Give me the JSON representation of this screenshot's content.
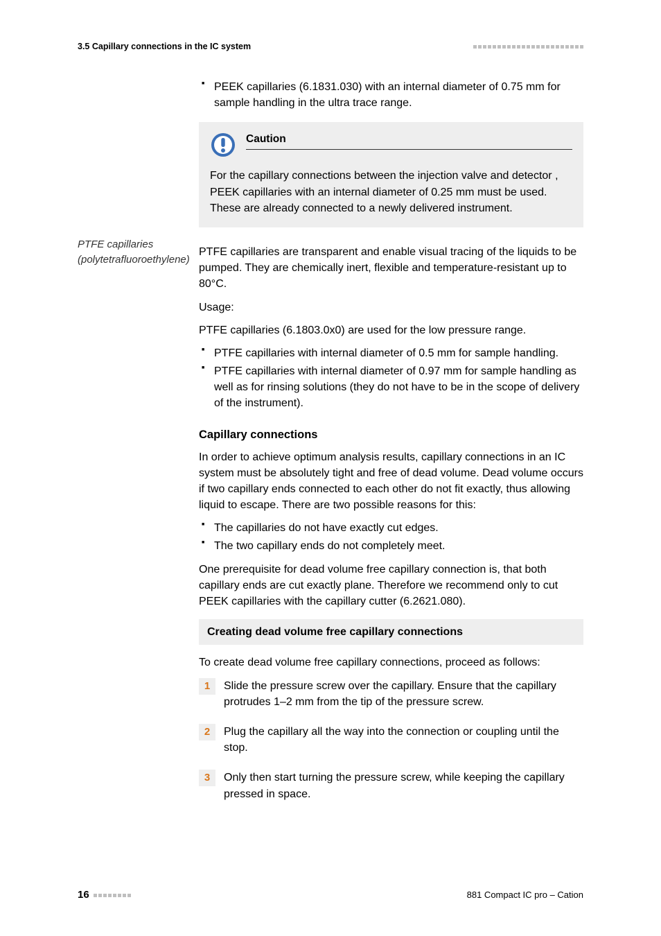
{
  "header": {
    "section": "3.5 Capillary connections in the IC system",
    "dots": 23
  },
  "top_bullet": "PEEK capillaries (6.1831.030) with an internal diameter of 0.75 mm for sample handling in the ultra trace range.",
  "caution": {
    "title": "Caution",
    "body": "For the capillary connections between the injection valve and detector , PEEK capillaries with an internal diameter of 0.25 mm must be used. These are already connected to a newly delivered instrument.",
    "icon": {
      "ring": "#3a6fb7",
      "fill": "#ffffff",
      "mark": "#3a6fb7"
    }
  },
  "ptfe": {
    "side_label": "PTFE capillaries (polytetrafluoroethylene)",
    "p1": "PTFE capillaries are transparent and enable visual tracing of the liquids to be pumped. They are chemically inert, flexible and temperature-resistant up to 80°C.",
    "usage_label": "Usage:",
    "usage_desc": "PTFE capillaries (6.1803.0x0) are used for the low pressure range.",
    "bullets": [
      "PTFE capillaries with internal diameter of 0.5 mm for sample handling.",
      "PTFE capillaries with internal diameter of 0.97 mm for sample handling as well as for rinsing solutions (they do not have to be in the scope of delivery of the instrument)."
    ]
  },
  "cap_conn": {
    "heading": "Capillary connections",
    "p1": "In order to achieve optimum analysis results, capillary connections in an IC system must be absolutely tight and free of dead volume. Dead volume occurs if two capillary ends connected to each other do not fit exactly, thus allowing liquid to escape. There are two possible reasons for this:",
    "bullets": [
      "The capillaries do not have exactly cut edges.",
      "The two capillary ends do not completely meet."
    ],
    "p2": "One prerequisite for dead volume free capillary connection is, that both capillary ends are cut exactly plane. Therefore we recommend only to cut PEEK capillaries with the capillary cutter (6.2621.080)."
  },
  "procedure": {
    "title": "Creating dead volume free capillary connections",
    "intro": "To create dead volume free capillary connections, proceed as follows:",
    "steps": [
      {
        "n": "1",
        "t": "Slide the pressure screw over the capillary. Ensure that the capillary protrudes 1–2 mm from the tip of the pressure screw."
      },
      {
        "n": "2",
        "t": "Plug the capillary all the way into the connection or coupling until the stop."
      },
      {
        "n": "3",
        "t": "Only then start turning the pressure screw, while keeping the capillary pressed in space."
      }
    ],
    "step_num_color": "#d9761a",
    "step_bg": "#eeeeee"
  },
  "footer": {
    "page": "16",
    "dots": 8,
    "product": "881 Compact IC pro – Cation"
  }
}
